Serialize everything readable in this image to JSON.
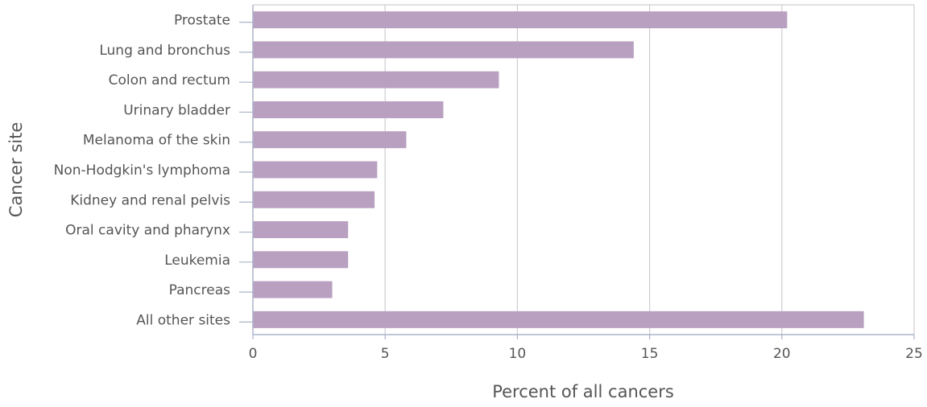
{
  "chart_data": {
    "type": "bar",
    "orientation": "horizontal",
    "title": "",
    "xlabel": "Percent of all cancers",
    "ylabel": "Cancer site",
    "categories": [
      "Prostate",
      "Lung and bronchus",
      "Colon and rectum",
      "Urinary bladder",
      "Melanoma of the skin",
      "Non-Hodgkin's lymphoma",
      "Kidney and renal pelvis",
      "Oral cavity and pharynx",
      "Leukemia",
      "Pancreas",
      "All other sites"
    ],
    "values": [
      20.2,
      14.4,
      9.3,
      7.2,
      5.8,
      4.7,
      4.6,
      3.6,
      3.6,
      3.0,
      23.1
    ],
    "xlim": [
      0,
      25
    ],
    "xticks": [
      0,
      5,
      10,
      15,
      20,
      25
    ],
    "grid": true,
    "legend": "none",
    "colors": {
      "bar": "#b9a0c1",
      "grid": "#cdcdd3",
      "axis": "#aab5c8",
      "text": "#555555"
    }
  }
}
